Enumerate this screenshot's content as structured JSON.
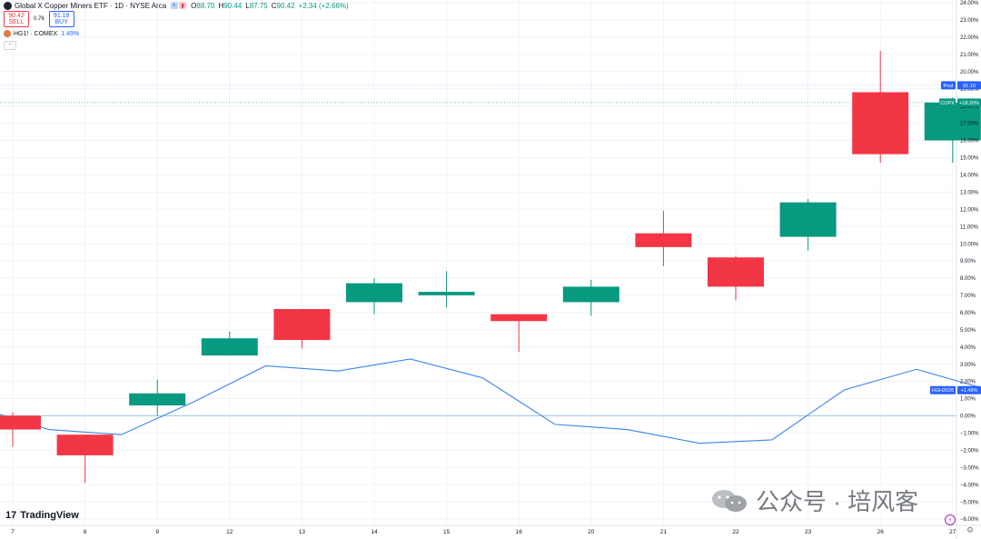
{
  "header": {
    "title": "Global X Copper Miners ETF · 1D · NYSE Arca",
    "ohlc": [
      {
        "k": "O",
        "v": "88.70"
      },
      {
        "k": "H",
        "v": "90.44"
      },
      {
        "k": "L",
        "v": "87.75"
      },
      {
        "k": "C",
        "v": "90.42"
      }
    ],
    "change": "+2.34 (+2.66%)"
  },
  "trade": {
    "sell_price": "90.42",
    "sell_label": "SELL",
    "spread": "0.76",
    "buy_price": "91.18",
    "buy_label": "BUY"
  },
  "overlay": {
    "name": "HG1! · COMEX",
    "value": "1.49%"
  },
  "branding": {
    "logo": "TradingView",
    "watermark": "公众号 · 培风客"
  },
  "colors": {
    "up": "#089981",
    "down": "#f23645",
    "line": "#2962ff",
    "post": "#2962ff"
  },
  "chart_data": {
    "type": "candlestick",
    "y_unit": "percent",
    "ylim": [
      -6.5,
      24.2
    ],
    "y_ticks": [
      "24.00%",
      "23.00%",
      "22.00%",
      "21.00%",
      "20.00%",
      "19.00%",
      "18.00%",
      "17.00%",
      "16.00%",
      "15.00%",
      "14.00%",
      "13.00%",
      "12.00%",
      "11.00%",
      "10.00%",
      "9.00%",
      "8.00%",
      "7.00%",
      "6.00%",
      "5.00%",
      "4.00%",
      "3.00%",
      "2.00%",
      "1.00%",
      "0.00%",
      "−1.00%",
      "−2.00%",
      "−3.00%",
      "−4.00%",
      "−5.00%",
      "−6.00%"
    ],
    "x_labels": [
      "7",
      "8",
      "9",
      "12",
      "13",
      "14",
      "15",
      "16",
      "20",
      "21",
      "22",
      "23",
      "26",
      "27"
    ],
    "series": [
      {
        "name": "COPX",
        "candles": [
          {
            "o": 0.0,
            "h": 0.2,
            "l": -1.8,
            "c": -0.8
          },
          {
            "o": -1.1,
            "h": -1.1,
            "l": -3.9,
            "c": -2.3
          },
          {
            "o": 0.6,
            "h": 2.1,
            "l": 0.0,
            "c": 1.3
          },
          {
            "o": 3.5,
            "h": 4.9,
            "l": 3.5,
            "c": 4.5
          },
          {
            "o": 6.2,
            "h": 6.2,
            "l": 3.9,
            "c": 4.4
          },
          {
            "o": 6.6,
            "h": 8.0,
            "l": 5.9,
            "c": 7.7
          },
          {
            "o": 7.0,
            "h": 8.4,
            "l": 6.3,
            "c": 7.2
          },
          {
            "o": 5.9,
            "h": 5.9,
            "l": 3.7,
            "c": 5.5
          },
          {
            "o": 6.6,
            "h": 7.9,
            "l": 5.8,
            "c": 7.5
          },
          {
            "o": 10.6,
            "h": 11.9,
            "l": 8.7,
            "c": 9.8
          },
          {
            "o": 9.2,
            "h": 9.3,
            "l": 6.7,
            "c": 7.5
          },
          {
            "o": 10.4,
            "h": 12.6,
            "l": 9.6,
            "c": 12.4
          },
          {
            "o": 18.8,
            "h": 21.2,
            "l": 14.7,
            "c": 15.2
          },
          {
            "o": 16.0,
            "h": 18.5,
            "l": 14.7,
            "c": 18.2
          }
        ]
      },
      {
        "name": "HGH2026",
        "x_offset": -0.5,
        "values": [
          0.5,
          -0.8,
          -1.1,
          0.8,
          2.9,
          2.6,
          3.3,
          2.2,
          -0.5,
          -0.8,
          -1.6,
          -1.4,
          1.5,
          2.7,
          1.5
        ]
      }
    ],
    "price_lines": [
      {
        "label": "Post",
        "value": "91.10",
        "y": 19.2,
        "style": "dotted"
      },
      {
        "label": "COPX",
        "value": "+18.20%",
        "y": 18.2,
        "style": "dotted"
      },
      {
        "label": "HGH2026",
        "value": "+1.49%",
        "y": 1.49,
        "style": "none"
      }
    ],
    "zero_line": 0.0
  }
}
